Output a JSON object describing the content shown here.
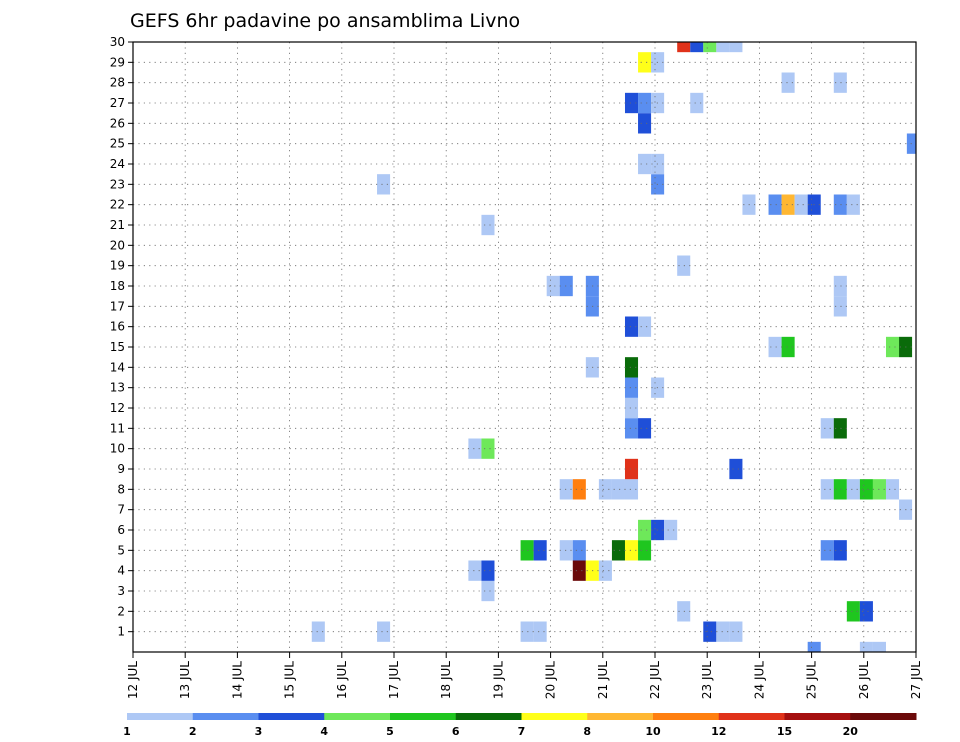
{
  "chart_data": {
    "type": "heatmap",
    "title": "GEFS 6hr padavine po ansamblima Livno",
    "y_ticks": [
      1,
      2,
      3,
      4,
      5,
      6,
      7,
      8,
      9,
      10,
      11,
      12,
      13,
      14,
      15,
      16,
      17,
      18,
      19,
      20,
      21,
      22,
      23,
      24,
      25,
      26,
      27,
      28,
      29,
      30
    ],
    "x_ticks": [
      "12 JUL",
      "13 JUL",
      "14 JUL",
      "15 JUL",
      "16 JUL",
      "17 JUL",
      "18 JUL",
      "19 JUL",
      "20 JUL",
      "21 JUL",
      "22 JUL",
      "23 JUL",
      "24 JUL",
      "25 JUL",
      "26 JUL",
      "27 JUL"
    ],
    "x_range_days": [
      12,
      27
    ],
    "ensemble_range": [
      0,
      30
    ],
    "grid": true,
    "legend": {
      "position": "bottom",
      "labels": [
        "1",
        "2",
        "3",
        "4",
        "5",
        "6",
        "7",
        "8",
        "10",
        "12",
        "15",
        "20"
      ],
      "colors": [
        "#aec8f5",
        "#5a8ef0",
        "#1f4fd8",
        "#6ee85a",
        "#1fc61f",
        "#0a6b0a",
        "#ffff1a",
        "#ffb732",
        "#ff7f0f",
        "#e0321a",
        "#a50f0f",
        "#6b0a0a"
      ]
    },
    "cells": [
      {
        "m": 1,
        "t": 15.55,
        "c": 0
      },
      {
        "m": 1,
        "t": 16.8,
        "c": 0
      },
      {
        "m": 1,
        "t": 19.55,
        "c": 0
      },
      {
        "m": 1,
        "t": 19.8,
        "c": 0
      },
      {
        "m": 1,
        "t": 23.05,
        "c": 2
      },
      {
        "m": 1,
        "t": 23.3,
        "c": 0
      },
      {
        "m": 1,
        "t": 23.55,
        "c": 0
      },
      {
        "m": 0,
        "t": 25.05,
        "c": 1
      },
      {
        "m": 0,
        "t": 26.05,
        "c": 0
      },
      {
        "m": 0,
        "t": 26.3,
        "c": 0
      },
      {
        "m": 2,
        "t": 22.55,
        "c": 0
      },
      {
        "m": 2,
        "t": 25.8,
        "c": 4
      },
      {
        "m": 2,
        "t": 26.05,
        "c": 2
      },
      {
        "m": 3,
        "t": 18.8,
        "c": 0
      },
      {
        "m": 4,
        "t": 18.55,
        "c": 0
      },
      {
        "m": 4,
        "t": 18.8,
        "c": 2
      },
      {
        "m": 4,
        "t": 20.55,
        "c": 11
      },
      {
        "m": 4,
        "t": 20.8,
        "c": 6
      },
      {
        "m": 4,
        "t": 21.05,
        "c": 0
      },
      {
        "m": 5,
        "t": 19.55,
        "c": 4
      },
      {
        "m": 5,
        "t": 19.8,
        "c": 2
      },
      {
        "m": 5,
        "t": 20.3,
        "c": 0
      },
      {
        "m": 5,
        "t": 20.55,
        "c": 1
      },
      {
        "m": 5,
        "t": 21.3,
        "c": 5
      },
      {
        "m": 5,
        "t": 21.55,
        "c": 6
      },
      {
        "m": 5,
        "t": 21.8,
        "c": 4
      },
      {
        "m": 5,
        "t": 25.3,
        "c": 1
      },
      {
        "m": 5,
        "t": 25.55,
        "c": 2
      },
      {
        "m": 6,
        "t": 21.8,
        "c": 3
      },
      {
        "m": 6,
        "t": 22.05,
        "c": 2
      },
      {
        "m": 6,
        "t": 22.3,
        "c": 0
      },
      {
        "m": 7,
        "t": 26.8,
        "c": 0
      },
      {
        "m": 8,
        "t": 20.3,
        "c": 0
      },
      {
        "m": 8,
        "t": 20.55,
        "c": 8
      },
      {
        "m": 8,
        "t": 21.05,
        "c": 0
      },
      {
        "m": 8,
        "t": 21.3,
        "c": 0
      },
      {
        "m": 8,
        "t": 21.55,
        "c": 0
      },
      {
        "m": 8,
        "t": 25.3,
        "c": 0
      },
      {
        "m": 8,
        "t": 25.55,
        "c": 4
      },
      {
        "m": 8,
        "t": 25.8,
        "c": 0
      },
      {
        "m": 8,
        "t": 26.05,
        "c": 4
      },
      {
        "m": 8,
        "t": 26.3,
        "c": 3
      },
      {
        "m": 8,
        "t": 26.55,
        "c": 0
      },
      {
        "m": 9,
        "t": 21.55,
        "c": 9
      },
      {
        "m": 9,
        "t": 23.55,
        "c": 2
      },
      {
        "m": 10,
        "t": 18.55,
        "c": 0
      },
      {
        "m": 10,
        "t": 18.8,
        "c": 3
      },
      {
        "m": 11,
        "t": 21.55,
        "c": 1
      },
      {
        "m": 11,
        "t": 21.8,
        "c": 2
      },
      {
        "m": 11,
        "t": 25.3,
        "c": 0
      },
      {
        "m": 11,
        "t": 25.55,
        "c": 5
      },
      {
        "m": 12,
        "t": 21.55,
        "c": 0
      },
      {
        "m": 13,
        "t": 21.55,
        "c": 1
      },
      {
        "m": 13,
        "t": 22.05,
        "c": 0
      },
      {
        "m": 14,
        "t": 20.8,
        "c": 0
      },
      {
        "m": 14,
        "t": 21.55,
        "c": 5
      },
      {
        "m": 15,
        "t": 24.3,
        "c": 0
      },
      {
        "m": 15,
        "t": 24.55,
        "c": 4
      },
      {
        "m": 15,
        "t": 26.55,
        "c": 3
      },
      {
        "m": 15,
        "t": 26.8,
        "c": 5
      },
      {
        "m": 16,
        "t": 21.55,
        "c": 2
      },
      {
        "m": 16,
        "t": 21.8,
        "c": 0
      },
      {
        "m": 17,
        "t": 20.8,
        "c": 1
      },
      {
        "m": 17,
        "t": 25.55,
        "c": 0
      },
      {
        "m": 18,
        "t": 20.05,
        "c": 0
      },
      {
        "m": 18,
        "t": 20.3,
        "c": 1
      },
      {
        "m": 18,
        "t": 20.8,
        "c": 1
      },
      {
        "m": 18,
        "t": 25.55,
        "c": 0
      },
      {
        "m": 19,
        "t": 22.55,
        "c": 0
      },
      {
        "m": 21,
        "t": 18.8,
        "c": 0
      },
      {
        "m": 22,
        "t": 23.8,
        "c": 0
      },
      {
        "m": 22,
        "t": 24.3,
        "c": 1
      },
      {
        "m": 22,
        "t": 24.55,
        "c": 7
      },
      {
        "m": 22,
        "t": 24.8,
        "c": 0
      },
      {
        "m": 22,
        "t": 25.05,
        "c": 2
      },
      {
        "m": 22,
        "t": 25.55,
        "c": 1
      },
      {
        "m": 22,
        "t": 25.8,
        "c": 0
      },
      {
        "m": 23,
        "t": 16.8,
        "c": 0
      },
      {
        "m": 23,
        "t": 22.05,
        "c": 1
      },
      {
        "m": 24,
        "t": 21.8,
        "c": 0
      },
      {
        "m": 24,
        "t": 22.05,
        "c": 0
      },
      {
        "m": 25,
        "t": 26.95,
        "c": 1
      },
      {
        "m": 26,
        "t": 21.8,
        "c": 2
      },
      {
        "m": 27,
        "t": 21.55,
        "c": 2
      },
      {
        "m": 27,
        "t": 21.8,
        "c": 1
      },
      {
        "m": 27,
        "t": 22.05,
        "c": 0
      },
      {
        "m": 27,
        "t": 22.8,
        "c": 0
      },
      {
        "m": 28,
        "t": 24.55,
        "c": 0
      },
      {
        "m": 28,
        "t": 25.55,
        "c": 0
      },
      {
        "m": 29,
        "t": 21.8,
        "c": 6
      },
      {
        "m": 29,
        "t": 22.05,
        "c": 0
      },
      {
        "m": 30,
        "t": 22.55,
        "c": 9
      },
      {
        "m": 30,
        "t": 22.8,
        "c": 2
      },
      {
        "m": 30,
        "t": 23.05,
        "c": 3
      },
      {
        "m": 30,
        "t": 23.3,
        "c": 0
      },
      {
        "m": 30,
        "t": 23.55,
        "c": 0
      }
    ]
  }
}
